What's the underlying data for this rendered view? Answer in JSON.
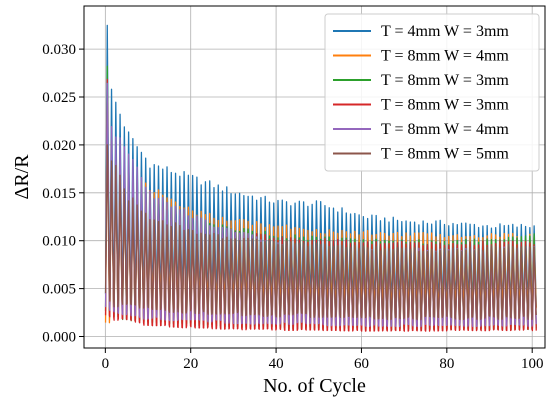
{
  "chart_data": {
    "type": "line",
    "title": "",
    "xlabel": "No. of Cycle",
    "ylabel": "ΔR/R",
    "xlim": [
      -5,
      103
    ],
    "ylim": [
      -0.0012,
      0.0345
    ],
    "x_ticks": [
      0,
      20,
      40,
      60,
      80,
      100
    ],
    "x_tick_labels": [
      "0",
      "20",
      "40",
      "60",
      "80",
      "100"
    ],
    "y_ticks": [
      0.0,
      0.005,
      0.01,
      0.015,
      0.02,
      0.025,
      0.03
    ],
    "y_tick_labels": [
      "0.000",
      "0.005",
      "0.010",
      "0.015",
      "0.020",
      "0.025",
      "0.030"
    ],
    "grid": true,
    "legend_position": "top-right",
    "n_cycles": 101,
    "series": [
      {
        "name": "T = 4mm W = 3mm",
        "color": "#1f77b4",
        "peak_envelope": [
          [
            0,
            0.033
          ],
          [
            1,
            0.0255
          ],
          [
            5,
            0.021
          ],
          [
            10,
            0.018
          ],
          [
            20,
            0.0165
          ],
          [
            30,
            0.015
          ],
          [
            40,
            0.014
          ],
          [
            50,
            0.0138
          ],
          [
            60,
            0.0125
          ],
          [
            70,
            0.012
          ],
          [
            80,
            0.0118
          ],
          [
            90,
            0.0115
          ],
          [
            100,
            0.0115
          ]
        ],
        "valley_envelope": [
          [
            0,
            0.005
          ],
          [
            2,
            0.0045
          ],
          [
            10,
            0.0042
          ],
          [
            30,
            0.004
          ],
          [
            60,
            0.0037
          ],
          [
            100,
            0.0035
          ]
        ]
      },
      {
        "name": "T = 8mm W = 4mm",
        "color": "#ff7f0e",
        "peak_envelope": [
          [
            0,
            0.0245
          ],
          [
            1,
            0.02
          ],
          [
            5,
            0.017
          ],
          [
            10,
            0.0155
          ],
          [
            20,
            0.013
          ],
          [
            30,
            0.012
          ],
          [
            40,
            0.0115
          ],
          [
            50,
            0.011
          ],
          [
            60,
            0.0108
          ],
          [
            80,
            0.0105
          ],
          [
            100,
            0.0105
          ]
        ],
        "valley_envelope": [
          [
            0,
            0.0015
          ],
          [
            2,
            0.003
          ],
          [
            10,
            0.0032
          ],
          [
            40,
            0.003
          ],
          [
            70,
            0.0028
          ],
          [
            100,
            0.0028
          ]
        ]
      },
      {
        "name": "T = 8mm W = 3mm",
        "color": "#2ca02c",
        "peak_envelope": [
          [
            0,
            0.0285
          ],
          [
            1,
            0.021
          ],
          [
            5,
            0.017
          ],
          [
            10,
            0.014
          ],
          [
            20,
            0.012
          ],
          [
            30,
            0.0112
          ],
          [
            40,
            0.0105
          ],
          [
            50,
            0.0102
          ],
          [
            60,
            0.01
          ],
          [
            80,
            0.0098
          ],
          [
            100,
            0.0105
          ]
        ],
        "valley_envelope": [
          [
            0,
            0.003
          ],
          [
            2,
            0.002
          ],
          [
            10,
            0.0015
          ],
          [
            30,
            0.001
          ],
          [
            60,
            0.0008
          ],
          [
            100,
            0.0008
          ]
        ]
      },
      {
        "name": "T = 8mm W = 3mm",
        "color": "#d62728",
        "peak_envelope": [
          [
            0,
            0.027
          ],
          [
            1,
            0.02
          ],
          [
            5,
            0.016
          ],
          [
            10,
            0.013
          ],
          [
            20,
            0.0115
          ],
          [
            30,
            0.0108
          ],
          [
            40,
            0.0102
          ],
          [
            50,
            0.01
          ],
          [
            60,
            0.0098
          ],
          [
            80,
            0.0097
          ],
          [
            100,
            0.0098
          ]
        ],
        "valley_envelope": [
          [
            0,
            0.0025
          ],
          [
            2,
            0.0018
          ],
          [
            10,
            0.0012
          ],
          [
            30,
            0.0008
          ],
          [
            60,
            0.0006
          ],
          [
            100,
            0.0007
          ]
        ]
      },
      {
        "name": "T = 8mm W = 4mm",
        "color": "#9467bd",
        "peak_envelope": [
          [
            0,
            0.0265
          ],
          [
            1,
            0.022
          ],
          [
            5,
            0.019
          ],
          [
            10,
            0.015
          ],
          [
            20,
            0.0125
          ],
          [
            30,
            0.0108
          ],
          [
            40,
            0.0098
          ],
          [
            50,
            0.0092
          ],
          [
            60,
            0.009
          ],
          [
            80,
            0.009
          ],
          [
            100,
            0.0092
          ]
        ],
        "valley_envelope": [
          [
            0,
            0.003
          ],
          [
            2,
            0.0025
          ],
          [
            10,
            0.002
          ],
          [
            30,
            0.0015
          ],
          [
            60,
            0.0012
          ],
          [
            100,
            0.0012
          ]
        ]
      },
      {
        "name": "T = 8mm W = 5mm",
        "color": "#8c564b",
        "peak_envelope": [
          [
            0,
            0.02
          ],
          [
            1,
            0.0185
          ],
          [
            5,
            0.0145
          ],
          [
            10,
            0.0125
          ],
          [
            20,
            0.011
          ],
          [
            30,
            0.0102
          ],
          [
            40,
            0.0098
          ],
          [
            50,
            0.0095
          ],
          [
            60,
            0.0092
          ],
          [
            80,
            0.009
          ],
          [
            100,
            0.0095
          ]
        ],
        "valley_envelope": [
          [
            0,
            0.0045
          ],
          [
            2,
            0.0035
          ],
          [
            10,
            0.003
          ],
          [
            30,
            0.0025
          ],
          [
            60,
            0.002
          ],
          [
            100,
            0.002
          ]
        ]
      }
    ]
  }
}
